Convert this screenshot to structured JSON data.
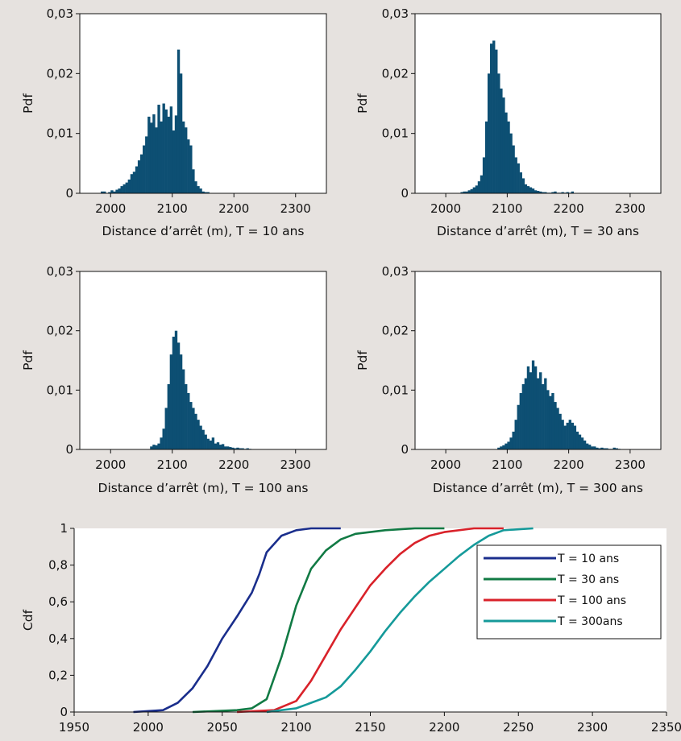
{
  "colors": {
    "background": "#e6e2df",
    "plot_background": "#ffffff",
    "bar": "#0d4f73",
    "axis": "#111111"
  },
  "chart_data": [
    {
      "id": "hist-10",
      "type": "bar",
      "bar_color": "#0d4f73",
      "xlabel": "Distance d’arrêt (m), T = 10 ans",
      "ylabel": "Pdf",
      "xlim": [
        1950,
        2350
      ],
      "ylim": [
        0,
        0.03
      ],
      "xticks": [
        2000,
        2100,
        2200,
        2300
      ],
      "xtick_labels": [
        "2000",
        "2100",
        "2200",
        "2300"
      ],
      "yticks": [
        0,
        0.01,
        0.02,
        0.03
      ],
      "ytick_labels": [
        "0",
        "0,01",
        "0,02",
        "0,03"
      ],
      "bin_width": 4,
      "bin_start": 1984,
      "values": [
        0.0003,
        0.0003,
        0,
        0.0002,
        0.0005,
        0.0003,
        0.0006,
        0.0008,
        0.0012,
        0.0015,
        0.0018,
        0.0023,
        0.0032,
        0.0036,
        0.0045,
        0.0055,
        0.0065,
        0.008,
        0.0095,
        0.0128,
        0.0118,
        0.0132,
        0.011,
        0.0148,
        0.012,
        0.015,
        0.014,
        0.0128,
        0.0145,
        0.0105,
        0.013,
        0.024,
        0.02,
        0.012,
        0.011,
        0.009,
        0.008,
        0.004,
        0.002,
        0.0012,
        0.0008,
        0.0003,
        0.0002,
        0.0002
      ]
    },
    {
      "id": "hist-30",
      "type": "bar",
      "bar_color": "#0d4f73",
      "xlabel": "Distance d’arrêt (m), T = 30 ans",
      "ylabel": "Pdf",
      "xlim": [
        1950,
        2350
      ],
      "ylim": [
        0,
        0.03
      ],
      "xticks": [
        2000,
        2100,
        2200,
        2300
      ],
      "xtick_labels": [
        "2000",
        "2100",
        "2200",
        "2300"
      ],
      "yticks": [
        0,
        0.01,
        0.02,
        0.03
      ],
      "ytick_labels": [
        "0",
        "0,01",
        "0,02",
        "0,03"
      ],
      "bin_width": 4,
      "bin_start": 2024,
      "values": [
        0.0002,
        0.0003,
        0.0003,
        0.0005,
        0.0007,
        0.001,
        0.0013,
        0.002,
        0.003,
        0.006,
        0.012,
        0.02,
        0.025,
        0.0255,
        0.024,
        0.02,
        0.0175,
        0.016,
        0.0135,
        0.012,
        0.01,
        0.008,
        0.006,
        0.005,
        0.0035,
        0.0025,
        0.0015,
        0.0012,
        0.001,
        0.0008,
        0.0005,
        0.0004,
        0.0003,
        0.0002,
        0.0002,
        0.0001,
        0.0001,
        0.0002,
        0.0003,
        0.0001,
        0.0001,
        0.0002,
        0.0001,
        0.0002,
        0.0001,
        0.0003
      ]
    },
    {
      "id": "hist-100",
      "type": "bar",
      "bar_color": "#0d4f73",
      "xlabel": "Distance d’arrêt (m), T = 100 ans",
      "ylabel": "Pdf",
      "xlim": [
        1950,
        2350
      ],
      "ylim": [
        0,
        0.03
      ],
      "xticks": [
        2000,
        2100,
        2200,
        2300
      ],
      "xtick_labels": [
        "2000",
        "2100",
        "2200",
        "2300"
      ],
      "yticks": [
        0,
        0.01,
        0.02,
        0.03
      ],
      "ytick_labels": [
        "0",
        "0,01",
        "0,02",
        "0,03"
      ],
      "bin_width": 4,
      "bin_start": 2064,
      "values": [
        0.0005,
        0.0008,
        0.0007,
        0.001,
        0.002,
        0.0035,
        0.007,
        0.011,
        0.016,
        0.019,
        0.02,
        0.018,
        0.016,
        0.0135,
        0.011,
        0.0095,
        0.008,
        0.007,
        0.006,
        0.005,
        0.004,
        0.0033,
        0.0025,
        0.0018,
        0.0015,
        0.002,
        0.001,
        0.0012,
        0.0008,
        0.0009,
        0.0005,
        0.0005,
        0.0004,
        0.0003,
        0.0002,
        0.0003,
        0.0002,
        0.0002,
        0.0001,
        0.0002,
        0.0001
      ]
    },
    {
      "id": "hist-300",
      "type": "bar",
      "bar_color": "#0d4f73",
      "xlabel": "Distance d’arrêt (m), T = 300 ans",
      "ylabel": "Pdf",
      "xlim": [
        1950,
        2350
      ],
      "ylim": [
        0,
        0.03
      ],
      "xticks": [
        2000,
        2100,
        2200,
        2300
      ],
      "xtick_labels": [
        "2000",
        "2100",
        "2200",
        "2300"
      ],
      "yticks": [
        0,
        0.01,
        0.02,
        0.03
      ],
      "ytick_labels": [
        "0",
        "0,01",
        "0,02",
        "0,03"
      ],
      "bin_width": 4,
      "bin_start": 2084,
      "values": [
        0.0003,
        0.0005,
        0.0007,
        0.001,
        0.0013,
        0.002,
        0.003,
        0.005,
        0.0075,
        0.0095,
        0.011,
        0.012,
        0.014,
        0.013,
        0.015,
        0.014,
        0.012,
        0.013,
        0.011,
        0.012,
        0.01,
        0.009,
        0.0095,
        0.008,
        0.007,
        0.006,
        0.005,
        0.004,
        0.0045,
        0.005,
        0.0045,
        0.004,
        0.003,
        0.0025,
        0.002,
        0.0015,
        0.001,
        0.0008,
        0.0005,
        0.0005,
        0.0003,
        0.0002,
        0.0003,
        0.0002,
        0.0002,
        0.0001,
        0.0001,
        0.0003,
        0.0002,
        0.0001
      ]
    },
    {
      "id": "cdf",
      "type": "line",
      "ylabel": "Cdf",
      "xlim": [
        1950,
        2350
      ],
      "ylim": [
        0,
        1
      ],
      "xticks": [
        1950,
        2000,
        2050,
        2100,
        2150,
        2200,
        2250,
        2300,
        2350
      ],
      "xtick_labels": [
        "1950",
        "2000",
        "2050",
        "2100",
        "2150",
        "2200",
        "2250",
        "2300",
        "2350"
      ],
      "yticks": [
        0,
        0.2,
        0.4,
        0.6,
        0.8,
        1
      ],
      "ytick_labels": [
        "0",
        "0,2",
        "0,4",
        "0,6",
        "0,8",
        "1"
      ],
      "legend_position": "right",
      "series": [
        {
          "name": "T = 10 ans",
          "color": "#1a2e8c",
          "points": [
            [
              1990,
              0
            ],
            [
              2010,
              0.01
            ],
            [
              2020,
              0.05
            ],
            [
              2030,
              0.13
            ],
            [
              2040,
              0.25
            ],
            [
              2050,
              0.4
            ],
            [
              2060,
              0.52
            ],
            [
              2070,
              0.65
            ],
            [
              2075,
              0.75
            ],
            [
              2080,
              0.87
            ],
            [
              2090,
              0.96
            ],
            [
              2100,
              0.99
            ],
            [
              2110,
              1
            ],
            [
              2130,
              1
            ]
          ]
        },
        {
          "name": "T = 30 ans",
          "color": "#117a44",
          "points": [
            [
              2030,
              0
            ],
            [
              2060,
              0.01
            ],
            [
              2070,
              0.02
            ],
            [
              2080,
              0.07
            ],
            [
              2090,
              0.3
            ],
            [
              2100,
              0.58
            ],
            [
              2110,
              0.78
            ],
            [
              2120,
              0.88
            ],
            [
              2130,
              0.94
            ],
            [
              2140,
              0.97
            ],
            [
              2160,
              0.99
            ],
            [
              2180,
              1
            ],
            [
              2200,
              1
            ]
          ]
        },
        {
          "name": "T = 100 ans",
          "color": "#d9222a",
          "points": [
            [
              2060,
              0
            ],
            [
              2085,
              0.01
            ],
            [
              2100,
              0.06
            ],
            [
              2110,
              0.17
            ],
            [
              2120,
              0.31
            ],
            [
              2130,
              0.45
            ],
            [
              2140,
              0.57
            ],
            [
              2150,
              0.69
            ],
            [
              2160,
              0.78
            ],
            [
              2170,
              0.86
            ],
            [
              2180,
              0.92
            ],
            [
              2190,
              0.96
            ],
            [
              2200,
              0.98
            ],
            [
              2220,
              1
            ],
            [
              2240,
              1
            ]
          ]
        },
        {
          "name": "T = 300ans",
          "color": "#159a9a",
          "points": [
            [
              2080,
              0
            ],
            [
              2100,
              0.02
            ],
            [
              2120,
              0.08
            ],
            [
              2130,
              0.14
            ],
            [
              2140,
              0.23
            ],
            [
              2150,
              0.33
            ],
            [
              2160,
              0.44
            ],
            [
              2170,
              0.54
            ],
            [
              2180,
              0.63
            ],
            [
              2190,
              0.71
            ],
            [
              2200,
              0.78
            ],
            [
              2210,
              0.85
            ],
            [
              2220,
              0.91
            ],
            [
              2230,
              0.96
            ],
            [
              2240,
              0.99
            ],
            [
              2260,
              1
            ]
          ]
        }
      ]
    }
  ]
}
